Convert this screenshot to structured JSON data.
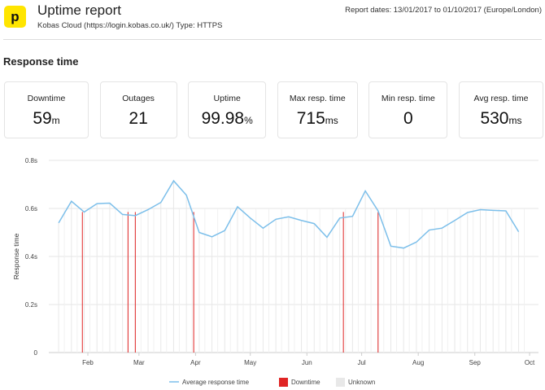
{
  "header": {
    "logo_letter": "p",
    "title": "Uptime report",
    "subtitle": "Kobas Cloud (https://login.kobas.co.uk/) Type: HTTPS",
    "report_dates": "Report dates: 13/01/2017 to 01/10/2017 (Europe/London)"
  },
  "section_title": "Response time",
  "cards": [
    {
      "label": "Downtime",
      "value": "59",
      "unit": "m",
      "width": 104
    },
    {
      "label": "Outages",
      "value": "21",
      "unit": "",
      "width": 95
    },
    {
      "label": "Uptime",
      "value": "99.98",
      "unit": "%",
      "width": 96
    },
    {
      "label": "Max resp. time",
      "value": "715",
      "unit": "ms",
      "width": 99
    },
    {
      "label": "Min resp. time",
      "value": "0",
      "unit": "",
      "width": 97
    },
    {
      "label": "Avg resp. time",
      "value": "530",
      "unit": "ms",
      "width": 104
    }
  ],
  "colors": {
    "line": "#7cbfea",
    "downtime": "#e02424",
    "unknown": "#e8e8e8",
    "brand": "#ffe500"
  },
  "chart_data": {
    "type": "line",
    "ylabel": "Response time",
    "ylim": [
      0,
      0.8
    ],
    "yticks": [
      {
        "v": 0,
        "label": "0"
      },
      {
        "v": 0.2,
        "label": "0.2s"
      },
      {
        "v": 0.4,
        "label": "0.4s"
      },
      {
        "v": 0.6,
        "label": "0.6s"
      },
      {
        "v": 0.8,
        "label": "0.8s"
      }
    ],
    "xticks": [
      {
        "date": "2017-02-01",
        "label": "Feb"
      },
      {
        "date": "2017-03-01",
        "label": "Mar"
      },
      {
        "date": "2017-04-01",
        "label": "Apr"
      },
      {
        "date": "2017-05-01",
        "label": "May"
      },
      {
        "date": "2017-06-01",
        "label": "Jun"
      },
      {
        "date": "2017-07-01",
        "label": "Jul"
      },
      {
        "date": "2017-08-01",
        "label": "Aug"
      },
      {
        "date": "2017-09-01",
        "label": "Sep"
      },
      {
        "date": "2017-10-01",
        "label": "Oct"
      }
    ],
    "legend": [
      "Average response time",
      "Downtime",
      "Unknown"
    ],
    "legend_position": "bottom",
    "series": [
      {
        "name": "Average response time",
        "points": [
          [
            "2017-01-16",
            0.54
          ],
          [
            "2017-01-23",
            0.63
          ],
          [
            "2017-01-30",
            0.585
          ],
          [
            "2017-02-06",
            0.62
          ],
          [
            "2017-02-13",
            0.622
          ],
          [
            "2017-02-20",
            0.575
          ],
          [
            "2017-02-27",
            0.57
          ],
          [
            "2017-03-06",
            0.595
          ],
          [
            "2017-03-13",
            0.625
          ],
          [
            "2017-03-20",
            0.715
          ],
          [
            "2017-03-27",
            0.655
          ],
          [
            "2017-04-03",
            0.5
          ],
          [
            "2017-04-10",
            0.482
          ],
          [
            "2017-04-17",
            0.508
          ],
          [
            "2017-04-24",
            0.607
          ],
          [
            "2017-05-01",
            0.56
          ],
          [
            "2017-05-08",
            0.518
          ],
          [
            "2017-05-15",
            0.555
          ],
          [
            "2017-05-22",
            0.565
          ],
          [
            "2017-05-29",
            0.55
          ],
          [
            "2017-06-05",
            0.537
          ],
          [
            "2017-06-12",
            0.48
          ],
          [
            "2017-06-19",
            0.56
          ],
          [
            "2017-06-26",
            0.567
          ],
          [
            "2017-07-03",
            0.673
          ],
          [
            "2017-07-10",
            0.59
          ],
          [
            "2017-07-17",
            0.443
          ],
          [
            "2017-07-24",
            0.435
          ],
          [
            "2017-07-31",
            0.46
          ],
          [
            "2017-08-07",
            0.51
          ],
          [
            "2017-08-14",
            0.518
          ],
          [
            "2017-08-21",
            0.55
          ],
          [
            "2017-08-28",
            0.583
          ],
          [
            "2017-09-04",
            0.595
          ],
          [
            "2017-09-11",
            0.592
          ],
          [
            "2017-09-18",
            0.59
          ],
          [
            "2017-09-25",
            0.503
          ]
        ]
      }
    ],
    "downtime_dates": [
      "2017-01-29",
      "2017-02-23",
      "2017-02-27",
      "2017-03-31",
      "2017-06-21",
      "2017-07-10"
    ]
  }
}
